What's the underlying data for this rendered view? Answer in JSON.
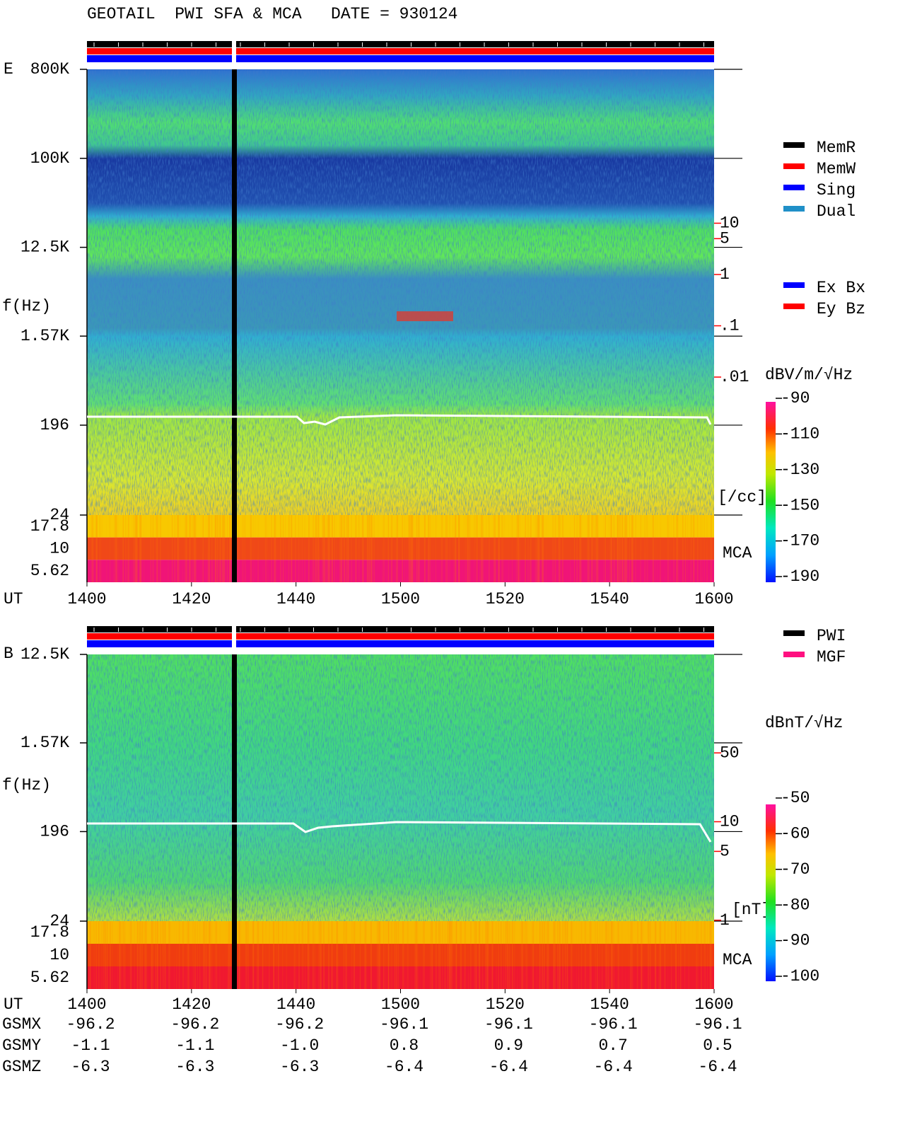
{
  "title": "GEOTAIL  PWI SFA & MCA   DATE = 930124",
  "chart_data": [
    {
      "type": "spectrogram",
      "panel_label": "E",
      "y_label": "f(Hz)",
      "x_label": "UT",
      "categories": [
        "1400",
        "1420",
        "1440",
        "1500",
        "1520",
        "1540",
        "1600"
      ],
      "log_y": true,
      "ylim": [
        24,
        800000
      ],
      "yticks": [
        {
          "value": 800000,
          "label": "800K"
        },
        {
          "value": 100000,
          "label": "100K"
        },
        {
          "value": 12500,
          "label": "12.5K"
        },
        {
          "value": 1570,
          "label": "1.57K"
        },
        196,
        24
      ],
      "mca_label": "MCA",
      "mca_channels": [
        17.8,
        10,
        5.62
      ],
      "density_lim": [
        1e-06,
        10000
      ],
      "density_ticks": [
        10,
        5,
        1,
        {
          "value": 0.1,
          "label": ".1"
        },
        {
          "value": 0.01,
          "label": ".01"
        }
      ],
      "density_unit": "[/cc]",
      "colorbar_label": "dBV/m/√Hz",
      "colorbar_lim": [
        -190,
        -90
      ],
      "colorbar_ticks": [
        -90,
        -110,
        -130,
        -150,
        -170,
        -190
      ],
      "legend": [
        {
          "name": "MemR",
          "color": "#000000"
        },
        {
          "name": "MemW",
          "color": "#ff0000"
        },
        {
          "name": "Sing",
          "color": "#0000ff"
        },
        {
          "name": "Dual",
          "color": "#2090c8"
        }
      ],
      "component_legend": [
        {
          "name": "Ex Bx",
          "color": "#0000ff"
        },
        {
          "name": "Ey Bz",
          "color": "#ff0000"
        }
      ]
    },
    {
      "type": "spectrogram",
      "panel_label": "B",
      "y_label": "f(Hz)",
      "x_label": "UT",
      "categories": [
        "1400",
        "1420",
        "1440",
        "1500",
        "1520",
        "1540",
        "1600"
      ],
      "log_y": true,
      "ylim": [
        24,
        12500
      ],
      "yticks": [
        {
          "value": 12500,
          "label": "12.5K"
        },
        {
          "value": 1570,
          "label": "1.57K"
        },
        196,
        24
      ],
      "mca_label": "MCA",
      "mca_channels": [
        17.8,
        10,
        5.62
      ],
      "density_lim": [
        0.2,
        500
      ],
      "density_ticks": [
        50,
        10,
        5,
        1
      ],
      "density_unit": "[nT]",
      "colorbar_label": "dBnT/√Hz",
      "colorbar_lim": [
        -100,
        -50
      ],
      "colorbar_ticks": [
        -50,
        -60,
        -70,
        -80,
        -90,
        -100
      ],
      "legend": [
        {
          "name": "PWI",
          "color": "#000000"
        },
        {
          "name": "MGF",
          "color": "#ff1080"
        }
      ]
    }
  ],
  "orbit": {
    "row_labels": [
      "GSMX",
      "GSMY",
      "GSMZ"
    ],
    "rows": [
      [
        "-96.2",
        "-96.2",
        "-96.2",
        "-96.1",
        "-96.1",
        "-96.1",
        "-96.1"
      ],
      [
        "-1.1",
        "-1.1",
        "-1.0",
        "0.8",
        "0.9",
        "0.7",
        "0.5"
      ],
      [
        "-6.3",
        "-6.3",
        "-6.3",
        "-6.4",
        "-6.4",
        "-6.4",
        "-6.4"
      ]
    ]
  }
}
